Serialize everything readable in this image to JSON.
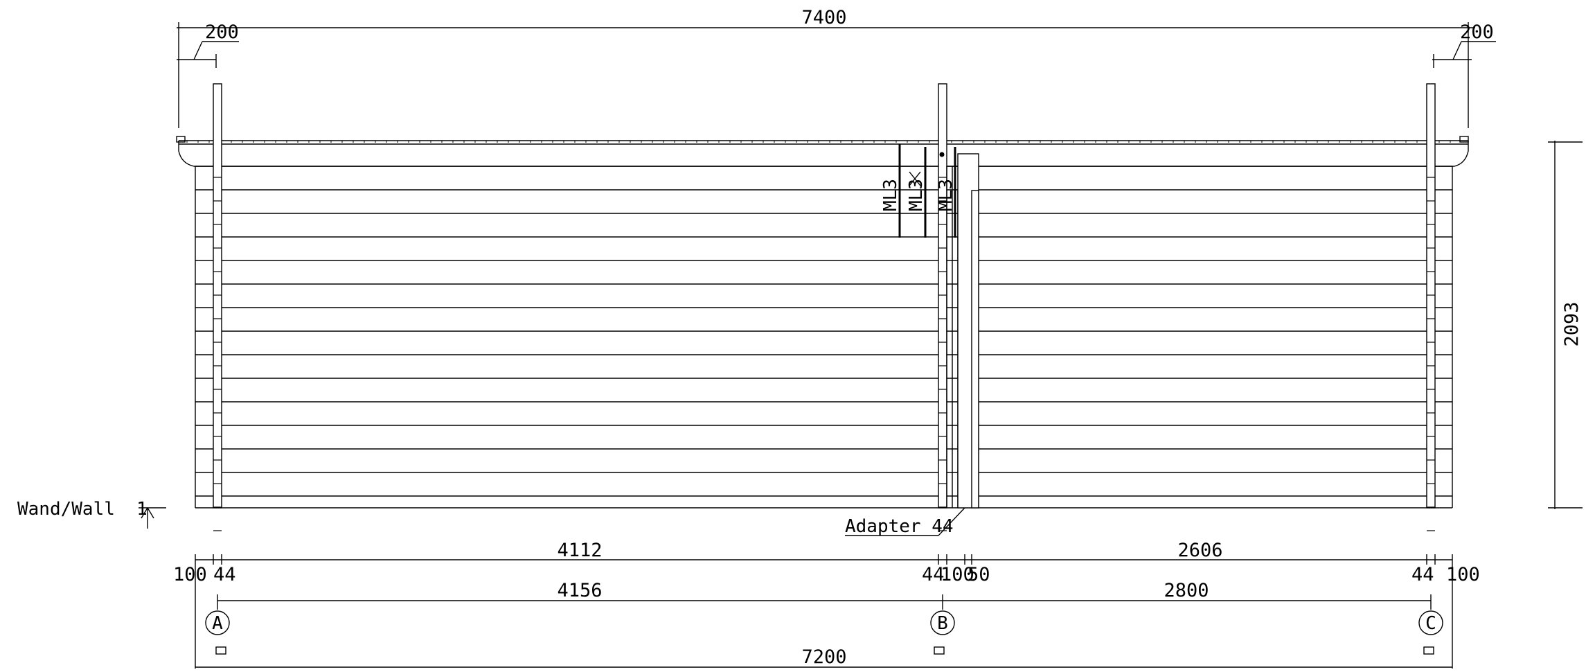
{
  "dimensions": {
    "top_overall": "7400",
    "top_left_overhang": "200",
    "top_right_overhang": "200",
    "height": "2093",
    "row1": {
      "left_edge": "100",
      "left_wall": "44",
      "span_left": "4112",
      "middle_a": "44",
      "middle_b": "100",
      "middle_c": "50",
      "span_right": "2606",
      "right_wall": "44",
      "right_edge": "100"
    },
    "row2": {
      "span_left": "4156",
      "span_right": "2800"
    },
    "bottom_overall": "7200"
  },
  "labels": {
    "wall": "Wand/Wall  1",
    "adapter": "Adapter 44",
    "ml_labels": [
      "ML3",
      "ML3",
      "ML3"
    ]
  },
  "grid_axes": [
    "A",
    "B",
    "C"
  ],
  "style": {
    "line_color": "#000000",
    "background": "#ffffff"
  }
}
